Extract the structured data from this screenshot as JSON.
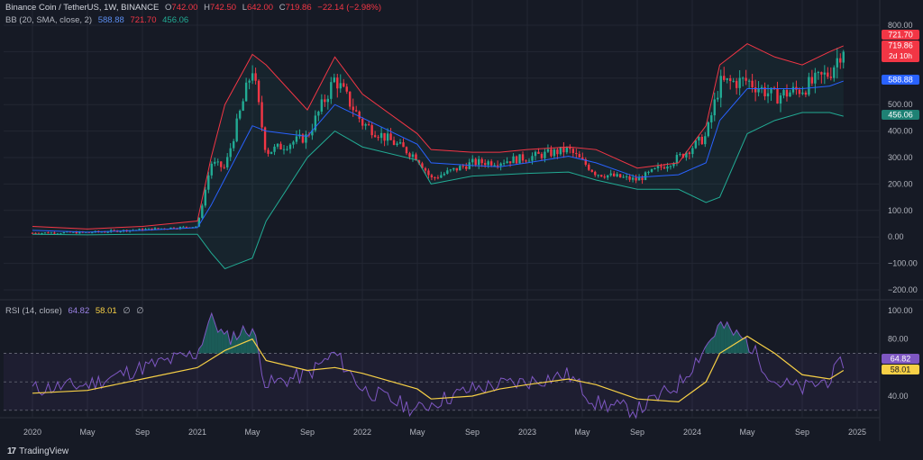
{
  "legend": {
    "symbol": "Binance Coin / TetherUS, 1W, BINANCE",
    "o_label": "O",
    "o": "742.00",
    "h_label": "H",
    "h": "742.50",
    "l_label": "L",
    "l": "642.00",
    "c_label": "C",
    "c": "719.86",
    "change": "−22.14 (−2.98%)",
    "bb_label": "BB (20, SMA, close, 2)",
    "bb_basis": "588.88",
    "bb_upper": "721.70",
    "bb_lower": "456.06",
    "rsi_label": "RSI (14, close)",
    "rsi_value": "64.82",
    "rsi_ma": "58.01",
    "rsi_extra1": "∅",
    "rsi_extra2": "∅"
  },
  "footer": {
    "brand": "TradingView"
  },
  "colors": {
    "background": "#161a25",
    "grid": "#232733",
    "up_candle": "#22ab94",
    "down_candle": "#f23645",
    "bb_basis": "#2962ff",
    "bb_upper": "#f23645",
    "bb_lower": "#22ab94",
    "rsi": "#7e57c2",
    "rsi_ma": "#f7d046"
  },
  "chart_data": [
    {
      "type": "candlestick",
      "title": "Binance Coin / TetherUS, 1W, BINANCE",
      "ylim": [
        -200,
        800
      ],
      "y_ticks": [
        "800.00",
        "700.00",
        "600.00",
        "500.00",
        "400.00",
        "300.00",
        "200.00",
        "100.00",
        "0.00",
        "−100.00",
        "−200.00"
      ],
      "x_ticks": [
        "2020",
        "May",
        "Sep",
        "2021",
        "May",
        "Sep",
        "2022",
        "May",
        "Sep",
        "2023",
        "May",
        "Sep",
        "2024",
        "May",
        "Sep",
        "2025"
      ],
      "grid": true,
      "price_labels": [
        {
          "text": "721.70",
          "value": 721.7,
          "color": "#f23645"
        },
        {
          "text": "719.86",
          "value": 719.86,
          "color": "#f23645",
          "sub": "2d 10h"
        },
        {
          "text": "588.88",
          "value": 588.88,
          "color": "#2962ff"
        },
        {
          "text": "456.06",
          "value": 456.06,
          "color": "#22ab94"
        }
      ],
      "close_series": {
        "x": [
          "2020-01",
          "2020-05",
          "2020-09",
          "2021-01",
          "2021-02",
          "2021-03",
          "2021-05",
          "2021-06",
          "2021-09",
          "2021-11",
          "2022-01",
          "2022-05",
          "2022-06",
          "2022-09",
          "2022-11",
          "2023-01",
          "2023-04",
          "2023-06",
          "2023-09",
          "2023-12",
          "2024-02",
          "2024-03",
          "2024-05",
          "2024-07",
          "2024-09",
          "2024-11",
          "2024-12"
        ],
        "values": [
          15,
          17,
          28,
          40,
          280,
          260,
          640,
          320,
          380,
          600,
          430,
          300,
          220,
          280,
          285,
          300,
          330,
          240,
          215,
          300,
          380,
          580,
          590,
          530,
          560,
          620,
          720
        ]
      },
      "bollinger": {
        "upper": [
          40,
          30,
          40,
          60,
          300,
          500,
          690,
          650,
          480,
          680,
          540,
          390,
          330,
          320,
          320,
          330,
          340,
          330,
          260,
          280,
          420,
          650,
          730,
          680,
          650,
          700,
          722
        ],
        "basis": [
          25,
          18,
          25,
          35,
          120,
          220,
          420,
          400,
          380,
          500,
          450,
          350,
          280,
          270,
          265,
          280,
          305,
          280,
          225,
          235,
          280,
          440,
          560,
          560,
          560,
          570,
          589
        ],
        "lower": [
          10,
          8,
          10,
          10,
          -60,
          -120,
          -80,
          60,
          300,
          400,
          340,
          290,
          200,
          230,
          235,
          240,
          245,
          215,
          180,
          180,
          130,
          150,
          390,
          440,
          470,
          470,
          456
        ]
      }
    },
    {
      "type": "line",
      "title": "RSI (14, close)",
      "ylim": [
        20,
        100
      ],
      "y_ticks": [
        "100.00",
        "80.00",
        "40.00"
      ],
      "bands": [
        70,
        50,
        30
      ],
      "x": [
        "2020-01",
        "2020-05",
        "2020-09",
        "2021-01",
        "2021-02",
        "2021-03",
        "2021-05",
        "2021-06",
        "2021-09",
        "2021-11",
        "2022-01",
        "2022-05",
        "2022-06",
        "2022-09",
        "2022-11",
        "2023-01",
        "2023-04",
        "2023-06",
        "2023-09",
        "2023-12",
        "2024-02",
        "2024-03",
        "2024-05",
        "2024-07",
        "2024-09",
        "2024-11",
        "2024-12"
      ],
      "series": [
        {
          "name": "RSI",
          "values": [
            45,
            48,
            60,
            70,
            97,
            80,
            88,
            48,
            55,
            70,
            45,
            30,
            35,
            45,
            48,
            50,
            55,
            35,
            30,
            48,
            75,
            90,
            78,
            50,
            45,
            52,
            64.82
          ]
        },
        {
          "name": "RSI MA",
          "values": [
            42,
            44,
            52,
            60,
            66,
            72,
            80,
            65,
            58,
            60,
            56,
            45,
            38,
            40,
            45,
            48,
            52,
            48,
            38,
            36,
            50,
            70,
            82,
            70,
            55,
            52,
            58.01
          ]
        }
      ]
    }
  ]
}
